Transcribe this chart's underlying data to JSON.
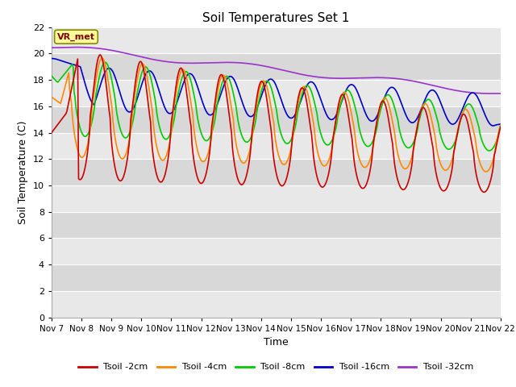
{
  "title": "Soil Temperatures Set 1",
  "xlabel": "Time",
  "ylabel": "Soil Temperature (C)",
  "ylim": [
    0,
    22
  ],
  "yticks": [
    0,
    2,
    4,
    6,
    8,
    10,
    12,
    14,
    16,
    18,
    20,
    22
  ],
  "x_labels": [
    "Nov 7",
    "Nov 8",
    "Nov 9",
    "Nov 10",
    "Nov 11",
    "Nov 12",
    "Nov 13",
    "Nov 14",
    "Nov 15",
    "Nov 16",
    "Nov 17",
    "Nov 18",
    "Nov 19",
    "Nov 20",
    "Nov 21",
    "Nov 22"
  ],
  "annotation_text": "VR_met",
  "annotation_box_color": "#ffff99",
  "annotation_text_color": "#800000",
  "colors": {
    "tsoil_2cm": "#cc0000",
    "tsoil_4cm": "#ff8800",
    "tsoil_8cm": "#00cc00",
    "tsoil_16cm": "#0000cc",
    "tsoil_32cm": "#9933cc"
  },
  "legend_labels": [
    "Tsoil -2cm",
    "Tsoil -4cm",
    "Tsoil -8cm",
    "Tsoil -16cm",
    "Tsoil -32cm"
  ],
  "plot_bg_color": "#e8e8e8",
  "band_light": "#e8e8e8",
  "band_dark": "#d8d8d8",
  "grid_color": "#ffffff",
  "line_width": 1.2
}
